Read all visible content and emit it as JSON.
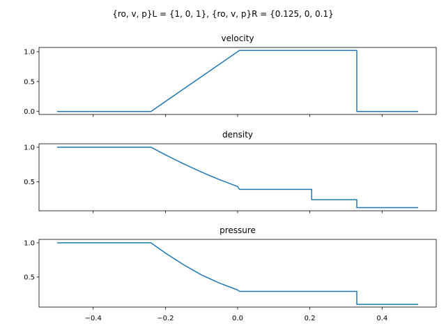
{
  "figure": {
    "title": "{ro, v, p}L = {1, 0, 1}, {ro, v, p}R = {0.125, 0, 0.1}"
  },
  "colors": {
    "line": "#1f77b4"
  },
  "chart_data": [
    {
      "type": "line",
      "title": "velocity",
      "xlabel": "",
      "ylabel": "",
      "xlim": [
        -0.55,
        0.55
      ],
      "ylim": [
        -0.05,
        1.07
      ],
      "xticks": [
        -0.4,
        -0.2,
        0.0,
        0.2,
        0.4
      ],
      "xtick_labels": [
        "",
        "",
        "",
        "",
        ""
      ],
      "yticks": [
        0.0,
        0.5,
        1.0
      ],
      "ytick_labels": [
        "0.0",
        "0.5",
        "1.0"
      ],
      "grid": false,
      "series": [
        {
          "x": [
            -0.5,
            -0.24,
            0.005,
            0.33,
            0.33,
            0.5
          ],
          "y": [
            0.0,
            0.0,
            1.02,
            1.02,
            0.0,
            0.0
          ]
        }
      ]
    },
    {
      "type": "line",
      "title": "density",
      "xlabel": "",
      "ylabel": "",
      "xlim": [
        -0.55,
        0.55
      ],
      "ylim": [
        0.08,
        1.05
      ],
      "xticks": [
        -0.4,
        -0.2,
        0.0,
        0.2,
        0.4
      ],
      "xtick_labels": [
        "",
        "",
        "",
        "",
        ""
      ],
      "yticks": [
        0.5,
        1.0
      ],
      "ytick_labels": [
        "0.5",
        "1.0"
      ],
      "grid": false,
      "series": [
        {
          "x": [
            -0.5,
            -0.24,
            -0.2,
            -0.15,
            -0.1,
            -0.05,
            0.0,
            0.005,
            0.205,
            0.205,
            0.33,
            0.33,
            0.5
          ],
          "y": [
            1.0,
            1.0,
            0.89,
            0.76,
            0.64,
            0.53,
            0.43,
            0.39,
            0.39,
            0.24,
            0.24,
            0.125,
            0.125
          ]
        }
      ]
    },
    {
      "type": "line",
      "title": "pressure",
      "xlabel": "",
      "ylabel": "",
      "xlim": [
        -0.55,
        0.55
      ],
      "ylim": [
        0.06,
        1.05
      ],
      "xticks": [
        -0.4,
        -0.2,
        0.0,
        0.2,
        0.4
      ],
      "xtick_labels": [
        "−0.4",
        "−0.2",
        "0.0",
        "0.2",
        "0.4"
      ],
      "yticks": [
        0.5,
        1.0
      ],
      "ytick_labels": [
        "0.5",
        "1.0"
      ],
      "grid": false,
      "series": [
        {
          "x": [
            -0.5,
            -0.24,
            -0.2,
            -0.15,
            -0.1,
            -0.05,
            0.0,
            0.005,
            0.33,
            0.33,
            0.5
          ],
          "y": [
            1.0,
            1.0,
            0.85,
            0.68,
            0.53,
            0.41,
            0.31,
            0.29,
            0.29,
            0.1,
            0.1
          ]
        }
      ]
    }
  ]
}
